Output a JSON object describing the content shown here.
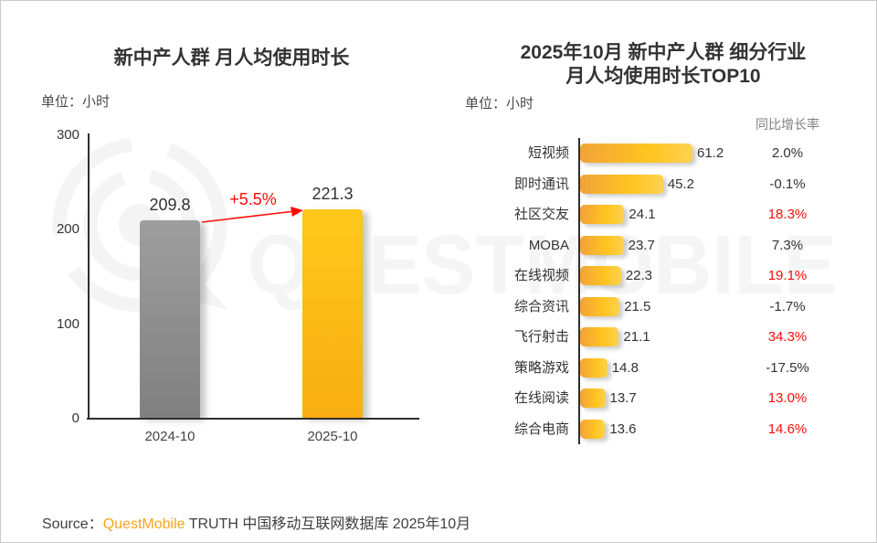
{
  "watermark": {
    "text": "QUESTMOBILE",
    "logo": "questmobile-logo",
    "color": "#f4f4f4"
  },
  "colors": {
    "accent_yellow": "#ffc013",
    "bar_gray": "#8f8f8f",
    "growth_red": "#fa0d07",
    "text_dark": "#333333",
    "header_gray": "#808080",
    "brand_orange": "#f7a41c"
  },
  "source": {
    "prefix": "Source：",
    "brand": "QuestMobile",
    "suffix": " TRUTH 中国移动互联网数据库 2025年10月"
  },
  "chart_data": [
    {
      "type": "bar",
      "title": "新中产人群 月人均使用时长",
      "unit_label": "单位：小时",
      "categories": [
        "2024-10",
        "2025-10"
      ],
      "values": [
        209.8,
        221.3
      ],
      "value_labels": [
        "209.8",
        "221.3"
      ],
      "bar_styles": [
        "gray",
        "yellow"
      ],
      "change_label": "+5.5%",
      "ylim": [
        0,
        300
      ],
      "yticks": [
        "0",
        "100",
        "200",
        "300"
      ],
      "grid": "off",
      "legend": "none"
    },
    {
      "type": "bar-horizontal",
      "title_line1": "2025年10月 新中产人群 细分行业",
      "title_line2": "月人均使用时长TOP10",
      "unit_label": "单位：小时",
      "growth_header": "同比增长率",
      "xlim": [
        0,
        65
      ],
      "rows": [
        {
          "label": "短视频",
          "value": 61.2,
          "value_label": "61.2",
          "growth": "2.0%",
          "growth_red": false
        },
        {
          "label": "即时通讯",
          "value": 45.2,
          "value_label": "45.2",
          "growth": "-0.1%",
          "growth_red": false
        },
        {
          "label": "社区交友",
          "value": 24.1,
          "value_label": "24.1",
          "growth": "18.3%",
          "growth_red": true
        },
        {
          "label": "MOBA",
          "value": 23.7,
          "value_label": "23.7",
          "growth": "7.3%",
          "growth_red": false
        },
        {
          "label": "在线视频",
          "value": 22.3,
          "value_label": "22.3",
          "growth": "19.1%",
          "growth_red": true
        },
        {
          "label": "综合资讯",
          "value": 21.5,
          "value_label": "21.5",
          "growth": "-1.7%",
          "growth_red": false
        },
        {
          "label": "飞行射击",
          "value": 21.1,
          "value_label": "21.1",
          "growth": "34.3%",
          "growth_red": true
        },
        {
          "label": "策略游戏",
          "value": 14.8,
          "value_label": "14.8",
          "growth": "-17.5%",
          "growth_red": false
        },
        {
          "label": "在线阅读",
          "value": 13.7,
          "value_label": "13.7",
          "growth": "13.0%",
          "growth_red": true
        },
        {
          "label": "综合电商",
          "value": 13.6,
          "value_label": "13.6",
          "growth": "14.6%",
          "growth_red": true
        }
      ]
    }
  ]
}
